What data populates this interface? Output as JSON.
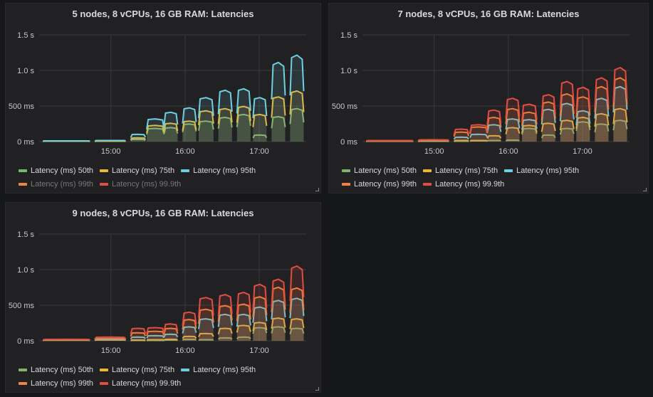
{
  "chart_data": [
    {
      "type": "line",
      "title": "5 nodes, 8 vCPUs, 16 GB RAM: Latencies",
      "ylim": [
        0,
        1500
      ],
      "yticks": [
        {
          "value": 0,
          "label": "0 ms"
        },
        {
          "value": 500,
          "label": "500 ms"
        },
        {
          "value": 1000,
          "label": "1.0 s"
        },
        {
          "value": 1500,
          "label": "1.5 s"
        }
      ],
      "xlim": [
        "14:02",
        "17:38"
      ],
      "xticks": [
        {
          "value": "15:00",
          "label": "15:00"
        },
        {
          "value": "16:00",
          "label": "16:00"
        },
        {
          "value": "17:00",
          "label": "17:00"
        }
      ],
      "grid": true,
      "legend": "bottom",
      "intervals": [
        [
          "14:05",
          "14:43"
        ],
        [
          "14:47",
          "15:12"
        ],
        [
          "15:16",
          "15:28"
        ],
        [
          "15:29",
          "15:43"
        ],
        [
          "15:43",
          "15:54"
        ],
        [
          "15:58",
          "16:09"
        ],
        [
          "16:11",
          "16:23"
        ],
        [
          "16:27",
          "16:38"
        ],
        [
          "16:42",
          "16:53"
        ],
        [
          "16:55",
          "17:06"
        ],
        [
          "17:10",
          "17:21"
        ],
        [
          "17:25",
          "17:36"
        ]
      ],
      "series": [
        {
          "name": "Latency (ms) 50th",
          "color": "#7eb26d",
          "hidden": false,
          "values": [
            5,
            5,
            30,
            180,
            190,
            240,
            280,
            330,
            370,
            90,
            340,
            450
          ]
        },
        {
          "name": "Latency (ms) 75th",
          "color": "#eab839",
          "hidden": false,
          "values": [
            7,
            8,
            50,
            220,
            250,
            280,
            420,
            450,
            480,
            370,
            610,
            690
          ]
        },
        {
          "name": "Latency (ms) 95th",
          "color": "#6ed0e0",
          "hidden": false,
          "values": [
            10,
            15,
            100,
            310,
            400,
            460,
            600,
            700,
            720,
            600,
            1080,
            1180
          ]
        },
        {
          "name": "Latency (ms) 99th",
          "color": "#ef843c",
          "hidden": true,
          "values": []
        },
        {
          "name": "Latency (ms) 99.9th",
          "color": "#e24d42",
          "hidden": true,
          "values": []
        }
      ]
    },
    {
      "type": "line",
      "title": "7 nodes, 8 vCPUs, 16 GB RAM: Latencies",
      "ylim": [
        0,
        1500
      ],
      "yticks": [
        {
          "value": 0,
          "label": "0 ms"
        },
        {
          "value": 500,
          "label": "500 ms"
        },
        {
          "value": 1000,
          "label": "1.0 s"
        },
        {
          "value": 1500,
          "label": "1.5 s"
        }
      ],
      "xlim": [
        "14:02",
        "17:38"
      ],
      "xticks": [
        {
          "value": "15:00",
          "label": "15:00"
        },
        {
          "value": "16:00",
          "label": "16:00"
        },
        {
          "value": "17:00",
          "label": "17:00"
        }
      ],
      "grid": true,
      "legend": "bottom",
      "intervals": [
        [
          "14:05",
          "14:43"
        ],
        [
          "14:47",
          "15:12"
        ],
        [
          "15:16",
          "15:28"
        ],
        [
          "15:29",
          "15:43"
        ],
        [
          "15:43",
          "15:54"
        ],
        [
          "15:58",
          "16:09"
        ],
        [
          "16:11",
          "16:23"
        ],
        [
          "16:27",
          "16:38"
        ],
        [
          "16:42",
          "16:53"
        ],
        [
          "16:55",
          "17:06"
        ],
        [
          "17:10",
          "17:21"
        ],
        [
          "17:25",
          "17:36"
        ]
      ],
      "series": [
        {
          "name": "Latency (ms) 50th",
          "color": "#7eb26d",
          "hidden": false,
          "values": [
            5,
            5,
            5,
            10,
            15,
            20,
            180,
            90,
            180,
            270,
            240,
            290
          ]
        },
        {
          "name": "Latency (ms) 75th",
          "color": "#eab839",
          "hidden": false,
          "values": [
            6,
            8,
            15,
            15,
            80,
            190,
            220,
            250,
            290,
            330,
            380,
            450
          ]
        },
        {
          "name": "Latency (ms) 95th",
          "color": "#6ed0e0",
          "hidden": false,
          "values": [
            8,
            12,
            60,
            100,
            230,
            310,
            300,
            440,
            520,
            420,
            590,
            750
          ]
        },
        {
          "name": "Latency (ms) 99th",
          "color": "#ef843c",
          "hidden": false,
          "values": [
            10,
            18,
            130,
            200,
            330,
            450,
            400,
            540,
            650,
            610,
            750,
            870
          ]
        },
        {
          "name": "Latency (ms) 99.9th",
          "color": "#e24d42",
          "hidden": false,
          "values": [
            15,
            25,
            170,
            230,
            430,
            590,
            510,
            640,
            820,
            740,
            870,
            1010
          ]
        }
      ]
    },
    {
      "type": "line",
      "title": "9 nodes, 8 vCPUs, 16 GB RAM: Latencies",
      "ylim": [
        0,
        1500
      ],
      "yticks": [
        {
          "value": 0,
          "label": "0 ms"
        },
        {
          "value": 500,
          "label": "500 ms"
        },
        {
          "value": 1000,
          "label": "1.0 s"
        },
        {
          "value": 1500,
          "label": "1.5 s"
        }
      ],
      "xlim": [
        "14:02",
        "17:38"
      ],
      "xticks": [
        {
          "value": "15:00",
          "label": "15:00"
        },
        {
          "value": "16:00",
          "label": "16:00"
        },
        {
          "value": "17:00",
          "label": "17:00"
        }
      ],
      "grid": true,
      "legend": "bottom",
      "intervals": [
        [
          "14:05",
          "14:43"
        ],
        [
          "14:47",
          "15:12"
        ],
        [
          "15:16",
          "15:28"
        ],
        [
          "15:29",
          "15:43"
        ],
        [
          "15:43",
          "15:54"
        ],
        [
          "15:58",
          "16:09"
        ],
        [
          "16:11",
          "16:23"
        ],
        [
          "16:27",
          "16:38"
        ],
        [
          "16:42",
          "16:53"
        ],
        [
          "16:55",
          "17:06"
        ],
        [
          "17:10",
          "17:21"
        ],
        [
          "17:25",
          "17:36"
        ]
      ],
      "series": [
        {
          "name": "Latency (ms) 50th",
          "color": "#7eb26d",
          "hidden": false,
          "values": [
            8,
            10,
            5,
            5,
            10,
            20,
            15,
            40,
            50,
            180,
            190,
            170
          ]
        },
        {
          "name": "Latency (ms) 75th",
          "color": "#eab839",
          "hidden": false,
          "values": [
            10,
            15,
            10,
            15,
            20,
            60,
            100,
            170,
            210,
            250,
            310,
            300
          ]
        },
        {
          "name": "Latency (ms) 95th",
          "color": "#6ed0e0",
          "hidden": false,
          "values": [
            12,
            20,
            50,
            70,
            90,
            190,
            300,
            360,
            360,
            460,
            550,
            580
          ]
        },
        {
          "name": "Latency (ms) 99th",
          "color": "#ef843c",
          "hidden": false,
          "values": [
            15,
            30,
            110,
            130,
            170,
            290,
            430,
            480,
            500,
            600,
            730,
            720
          ]
        },
        {
          "name": "Latency (ms) 99.9th",
          "color": "#e24d42",
          "hidden": false,
          "values": [
            20,
            50,
            170,
            180,
            230,
            390,
            590,
            630,
            660,
            770,
            840,
            1020
          ]
        }
      ]
    }
  ]
}
